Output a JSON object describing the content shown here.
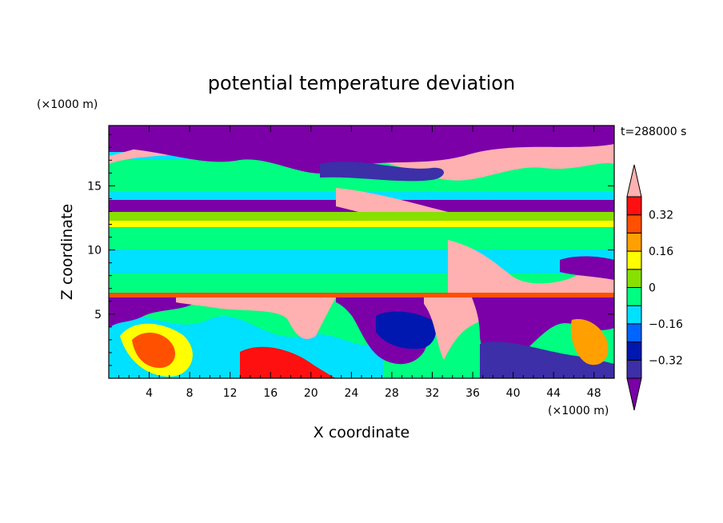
{
  "chart_data": {
    "type": "heatmap",
    "title": "potential temperature deviation",
    "xlabel": "X coordinate",
    "ylabel": "Z coordinate",
    "x_unit": "(×1000 m)",
    "y_unit": "(×1000 m)",
    "time_label": "t=288000 s",
    "xlim": [
      0,
      50
    ],
    "ylim": [
      0,
      19.7
    ],
    "x_ticks": [
      4,
      8,
      12,
      16,
      20,
      24,
      28,
      32,
      36,
      40,
      44,
      48
    ],
    "y_ticks": [
      5,
      10,
      15
    ],
    "colorbar": {
      "levels": [
        -0.4,
        -0.32,
        -0.24,
        -0.16,
        -0.08,
        0,
        0.08,
        0.16,
        0.24,
        0.32,
        0.4
      ],
      "tick_values": [
        0.32,
        0.16,
        0,
        -0.16,
        -0.32
      ],
      "tick_labels": [
        "0.32",
        "0.16",
        "0",
        "−0.16",
        "−0.32"
      ],
      "extend": "both",
      "colors": [
        "#7b00a8",
        "#3c2fa8",
        "#0018b0",
        "#0064ff",
        "#00e0ff",
        "#00ff80",
        "#88e000",
        "#ffff00",
        "#ffa000",
        "#ff5000",
        "#ff1010",
        "#ffb0b0"
      ]
    }
  }
}
